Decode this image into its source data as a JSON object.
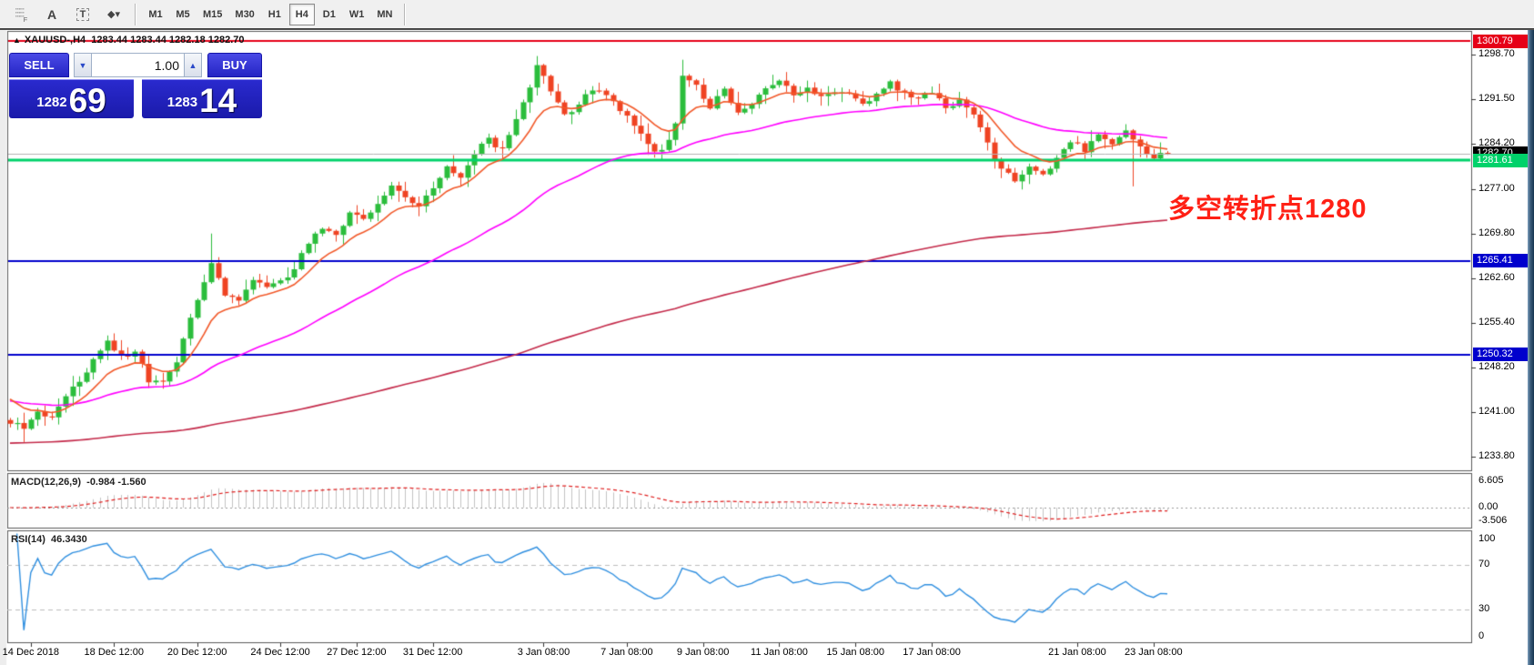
{
  "toolbar": {
    "tools": [
      {
        "name": "crosshair-grid-icon",
        "glyph": "F"
      },
      {
        "name": "text-annotation-icon",
        "glyph": "A"
      },
      {
        "name": "text-label-icon",
        "glyph": "T"
      },
      {
        "name": "shapes-dropdown-icon",
        "glyph": "◆▾"
      }
    ],
    "timeframes": [
      "M1",
      "M5",
      "M15",
      "M30",
      "H1",
      "H4",
      "D1",
      "W1",
      "MN"
    ],
    "active_timeframe": "H4"
  },
  "chart_header": {
    "symbol": "XAUUSD-,H4",
    "ohlc": "1283.44 1283.44 1282.18 1282.70"
  },
  "trade_panel": {
    "sell_label": "SELL",
    "buy_label": "BUY",
    "volume": "1.00",
    "sell_price_small": "1282",
    "sell_price_big": "69",
    "buy_price_small": "1283",
    "buy_price_big": "14"
  },
  "annotation": {
    "text": "多空转折点1280",
    "color": "#ff2015"
  },
  "chart_data": {
    "type": "candlestick",
    "symbol": "XAUUSD-",
    "timeframe": "H4",
    "bars": 168,
    "y_range": [
      1231.5,
      1302.3
    ],
    "price_axis_ticks": [
      "1298.70",
      "1291.50",
      "1284.20",
      "1277.00",
      "1269.80",
      "1262.60",
      "1255.40",
      "1248.20",
      "1241.00",
      "1233.80"
    ],
    "price_levels": [
      {
        "price": 1300.79,
        "label": "1300.79",
        "line_color": "#e60018",
        "badge_bg": "#e60018",
        "badge_fg": "#ffffff",
        "width": 2
      },
      {
        "price": 1282.7,
        "label": "1282.70",
        "line_color": "#b4b4b4",
        "badge_bg": "#000000",
        "badge_fg": "#ffffff",
        "width": 1
      },
      {
        "price": 1281.61,
        "label": "1281.61",
        "line_color": "#00d26a",
        "badge_bg": "#00d26a",
        "badge_fg": "#ffffff",
        "width": 3
      },
      {
        "price": 1265.41,
        "label": "1265.41",
        "line_color": "#0000cd",
        "badge_bg": "#0000cd",
        "badge_fg": "#ffffff",
        "width": 2
      },
      {
        "price": 1250.32,
        "label": "1250.32",
        "line_color": "#0000cd",
        "badge_bg": "#0000cd",
        "badge_fg": "#ffffff",
        "width": 2
      }
    ],
    "time_ticks": [
      {
        "label": "14 Dec 2018",
        "bar": 3
      },
      {
        "label": "18 Dec 12:00",
        "bar": 15
      },
      {
        "label": "20 Dec 12:00",
        "bar": 27
      },
      {
        "label": "24 Dec 12:00",
        "bar": 39
      },
      {
        "label": "27 Dec 12:00",
        "bar": 50
      },
      {
        "label": "31 Dec 12:00",
        "bar": 61
      },
      {
        "label": "3 Jan 08:00",
        "bar": 77
      },
      {
        "label": "7 Jan 08:00",
        "bar": 89
      },
      {
        "label": "9 Jan 08:00",
        "bar": 100
      },
      {
        "label": "11 Jan 08:00",
        "bar": 111
      },
      {
        "label": "15 Jan 08:00",
        "bar": 122
      },
      {
        "label": "17 Jan 08:00",
        "bar": 133
      },
      {
        "label": "21 Jan 08:00",
        "bar": 154
      },
      {
        "label": "23 Jan 08:00",
        "bar": 165
      }
    ],
    "candle_colors": {
      "bull": "#2bbd3c",
      "bear": "#ef4323"
    },
    "close_waypoints": [
      [
        0,
        1239.6
      ],
      [
        2,
        1238.2
      ],
      [
        4,
        1241.0
      ],
      [
        6,
        1240.0
      ],
      [
        8,
        1243.5
      ],
      [
        11,
        1247.5
      ],
      [
        14,
        1252.6
      ],
      [
        16,
        1250.0
      ],
      [
        18,
        1250.8
      ],
      [
        20,
        1246.2
      ],
      [
        22,
        1245.6
      ],
      [
        24,
        1249.0
      ],
      [
        26,
        1256.5
      ],
      [
        28,
        1262.0
      ],
      [
        29,
        1264.8
      ],
      [
        31,
        1260.0
      ],
      [
        33,
        1258.8
      ],
      [
        35,
        1262.2
      ],
      [
        37,
        1260.8
      ],
      [
        39,
        1262.0
      ],
      [
        41,
        1264.0
      ],
      [
        43,
        1268.5
      ],
      [
        45,
        1270.8
      ],
      [
        47,
        1269.2
      ],
      [
        49,
        1273.6
      ],
      [
        51,
        1272.0
      ],
      [
        53,
        1274.5
      ],
      [
        55,
        1277.6
      ],
      [
        57,
        1275.2
      ],
      [
        59,
        1274.6
      ],
      [
        61,
        1277.5
      ],
      [
        63,
        1280.6
      ],
      [
        65,
        1279.0
      ],
      [
        67,
        1283.0
      ],
      [
        69,
        1284.8
      ],
      [
        71,
        1283.2
      ],
      [
        73,
        1288.0
      ],
      [
        75,
        1293.5
      ],
      [
        76,
        1296.6
      ],
      [
        78,
        1293.0
      ],
      [
        80,
        1288.6
      ],
      [
        82,
        1290.5
      ],
      [
        84,
        1293.2
      ],
      [
        86,
        1292.0
      ],
      [
        88,
        1289.6
      ],
      [
        90,
        1287.2
      ],
      [
        92,
        1284.0
      ],
      [
        94,
        1282.9
      ],
      [
        96,
        1287.5
      ],
      [
        97,
        1295.0
      ],
      [
        99,
        1293.6
      ],
      [
        101,
        1290.2
      ],
      [
        103,
        1292.8
      ],
      [
        105,
        1289.0
      ],
      [
        107,
        1290.8
      ],
      [
        109,
        1293.0
      ],
      [
        111,
        1294.6
      ],
      [
        113,
        1292.4
      ],
      [
        115,
        1293.2
      ],
      [
        117,
        1291.6
      ],
      [
        119,
        1292.8
      ],
      [
        121,
        1292.0
      ],
      [
        123,
        1290.6
      ],
      [
        125,
        1292.2
      ],
      [
        127,
        1294.0
      ],
      [
        129,
        1292.6
      ],
      [
        131,
        1291.4
      ],
      [
        133,
        1292.6
      ],
      [
        135,
        1289.8
      ],
      [
        137,
        1291.6
      ],
      [
        139,
        1289.0
      ],
      [
        141,
        1284.2
      ],
      [
        143,
        1280.0
      ],
      [
        145,
        1278.4
      ],
      [
        147,
        1280.6
      ],
      [
        149,
        1279.2
      ],
      [
        151,
        1281.8
      ],
      [
        153,
        1284.6
      ],
      [
        155,
        1283.2
      ],
      [
        157,
        1285.4
      ],
      [
        159,
        1283.8
      ],
      [
        161,
        1286.0
      ],
      [
        163,
        1283.6
      ],
      [
        165,
        1282.2
      ],
      [
        167,
        1282.7
      ]
    ],
    "wick_overrides": [
      {
        "bar": 2,
        "low": 1236.2
      },
      {
        "bar": 29,
        "high": 1269.8
      },
      {
        "bar": 76,
        "high": 1298.4
      },
      {
        "bar": 97,
        "high": 1297.8
      },
      {
        "bar": 146,
        "low": 1276.9
      },
      {
        "bar": 162,
        "low": 1277.4
      }
    ],
    "ma_lines": [
      {
        "type": "EMA",
        "period": 10,
        "seed": 1244,
        "color": "#f2592a"
      },
      {
        "type": "EMA",
        "period": 45,
        "seed": 1243,
        "color": "#ff00ff"
      },
      {
        "type": "EMA",
        "period": 220,
        "seed": 1236,
        "color": "#c42a4a"
      }
    ],
    "macd": {
      "label": "MACD(12,26,9)",
      "values": "-0.984 -1.560",
      "params": [
        12,
        26,
        9
      ],
      "axis_labels": [
        "6.605",
        "0.00",
        "-3.506"
      ],
      "histogram_color": "#c4c4c4",
      "signal_color": "#e01f1f"
    },
    "rsi": {
      "label": "RSI(14)",
      "value": "46.3430",
      "period": 14,
      "axis_labels": [
        "100",
        "70",
        "30",
        "0"
      ],
      "level_lines": [
        70,
        30
      ],
      "line_color": "#2f8fe0"
    }
  }
}
